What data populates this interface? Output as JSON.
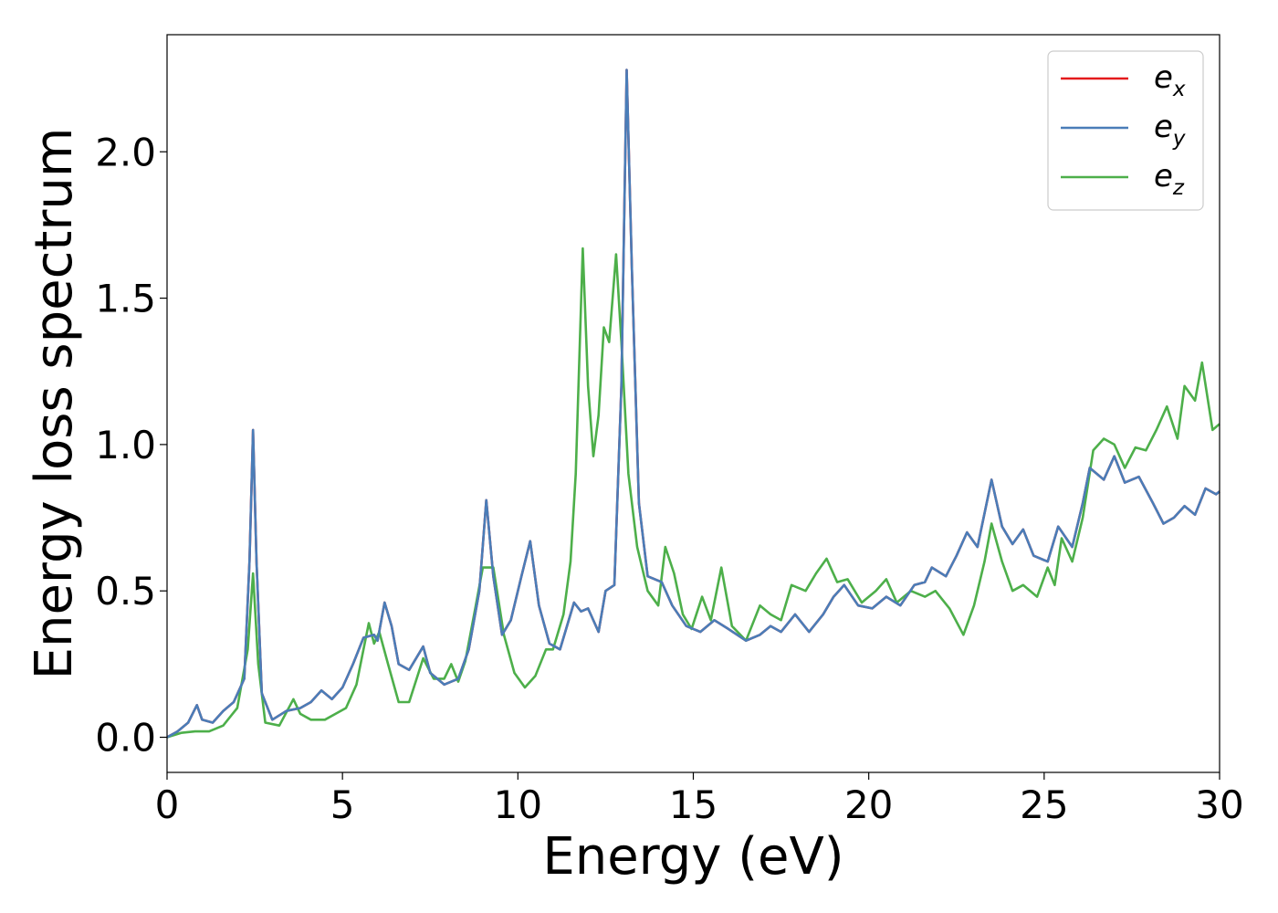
{
  "chart_data": {
    "type": "line",
    "xlabel": "Energy (eV)",
    "ylabel": "Energy loss spectrum",
    "xlim": [
      0,
      30
    ],
    "ylim": [
      -0.12,
      2.4
    ],
    "xticks": [
      0,
      5,
      10,
      15,
      20,
      25,
      30
    ],
    "xtick_labels": [
      "0",
      "5",
      "10",
      "15",
      "20",
      "25",
      "30"
    ],
    "yticks": [
      0.0,
      0.5,
      1.0,
      1.5,
      2.0
    ],
    "ytick_labels": [
      "0.0",
      "0.5",
      "1.0",
      "1.5",
      "2.0"
    ],
    "grid": false,
    "legend_position": "top-right",
    "series": [
      {
        "name": "e",
        "sub": "x",
        "color": "#e41a1c",
        "points": [
          [
            0,
            0
          ],
          [
            0.3,
            0.02
          ],
          [
            0.6,
            0.05
          ],
          [
            0.85,
            0.11
          ],
          [
            1.0,
            0.06
          ],
          [
            1.3,
            0.05
          ],
          [
            1.6,
            0.09
          ],
          [
            1.9,
            0.12
          ],
          [
            2.2,
            0.2
          ],
          [
            2.35,
            0.6
          ],
          [
            2.45,
            1.05
          ],
          [
            2.55,
            0.6
          ],
          [
            2.7,
            0.15
          ],
          [
            3.0,
            0.06
          ],
          [
            3.4,
            0.09
          ],
          [
            3.8,
            0.1
          ],
          [
            4.1,
            0.12
          ],
          [
            4.4,
            0.16
          ],
          [
            4.7,
            0.13
          ],
          [
            5.0,
            0.17
          ],
          [
            5.3,
            0.25
          ],
          [
            5.6,
            0.34
          ],
          [
            5.9,
            0.35
          ],
          [
            6.0,
            0.33
          ],
          [
            6.2,
            0.46
          ],
          [
            6.4,
            0.38
          ],
          [
            6.6,
            0.25
          ],
          [
            6.9,
            0.23
          ],
          [
            7.3,
            0.31
          ],
          [
            7.5,
            0.22
          ],
          [
            7.9,
            0.18
          ],
          [
            8.3,
            0.2
          ],
          [
            8.6,
            0.3
          ],
          [
            8.9,
            0.5
          ],
          [
            9.1,
            0.81
          ],
          [
            9.3,
            0.55
          ],
          [
            9.55,
            0.35
          ],
          [
            9.8,
            0.4
          ],
          [
            10.1,
            0.55
          ],
          [
            10.35,
            0.67
          ],
          [
            10.6,
            0.45
          ],
          [
            10.9,
            0.32
          ],
          [
            11.2,
            0.3
          ],
          [
            11.4,
            0.38
          ],
          [
            11.6,
            0.46
          ],
          [
            11.8,
            0.43
          ],
          [
            12.0,
            0.44
          ],
          [
            12.3,
            0.36
          ],
          [
            12.5,
            0.5
          ],
          [
            12.75,
            0.52
          ],
          [
            12.95,
            1.2
          ],
          [
            13.1,
            2.28
          ],
          [
            13.25,
            1.6
          ],
          [
            13.45,
            0.8
          ],
          [
            13.7,
            0.55
          ],
          [
            14.1,
            0.53
          ],
          [
            14.4,
            0.45
          ],
          [
            14.8,
            0.38
          ],
          [
            15.2,
            0.36
          ],
          [
            15.6,
            0.4
          ],
          [
            16.0,
            0.37
          ],
          [
            16.5,
            0.33
          ],
          [
            16.9,
            0.35
          ],
          [
            17.2,
            0.38
          ],
          [
            17.5,
            0.36
          ],
          [
            17.9,
            0.42
          ],
          [
            18.3,
            0.36
          ],
          [
            18.7,
            0.42
          ],
          [
            19.0,
            0.48
          ],
          [
            19.3,
            0.52
          ],
          [
            19.7,
            0.45
          ],
          [
            20.1,
            0.44
          ],
          [
            20.5,
            0.48
          ],
          [
            20.9,
            0.45
          ],
          [
            21.3,
            0.52
          ],
          [
            21.6,
            0.53
          ],
          [
            21.8,
            0.58
          ],
          [
            22.2,
            0.55
          ],
          [
            22.5,
            0.62
          ],
          [
            22.8,
            0.7
          ],
          [
            23.1,
            0.65
          ],
          [
            23.5,
            0.88
          ],
          [
            23.8,
            0.72
          ],
          [
            24.1,
            0.66
          ],
          [
            24.4,
            0.71
          ],
          [
            24.7,
            0.62
          ],
          [
            25.1,
            0.6
          ],
          [
            25.4,
            0.72
          ],
          [
            25.8,
            0.65
          ],
          [
            26.1,
            0.8
          ],
          [
            26.3,
            0.92
          ],
          [
            26.7,
            0.88
          ],
          [
            27.0,
            0.96
          ],
          [
            27.3,
            0.87
          ],
          [
            27.7,
            0.89
          ],
          [
            28.1,
            0.8
          ],
          [
            28.4,
            0.73
          ],
          [
            28.7,
            0.75
          ],
          [
            29.0,
            0.79
          ],
          [
            29.3,
            0.76
          ],
          [
            29.6,
            0.85
          ],
          [
            29.9,
            0.83
          ],
          [
            30,
            0.84
          ]
        ]
      },
      {
        "name": "e",
        "sub": "y",
        "color": "#4a7db8",
        "points": [
          [
            0,
            0
          ],
          [
            0.3,
            0.02
          ],
          [
            0.6,
            0.05
          ],
          [
            0.85,
            0.11
          ],
          [
            1.0,
            0.06
          ],
          [
            1.3,
            0.05
          ],
          [
            1.6,
            0.09
          ],
          [
            1.9,
            0.12
          ],
          [
            2.2,
            0.2
          ],
          [
            2.35,
            0.6
          ],
          [
            2.45,
            1.05
          ],
          [
            2.55,
            0.6
          ],
          [
            2.7,
            0.15
          ],
          [
            3.0,
            0.06
          ],
          [
            3.4,
            0.09
          ],
          [
            3.8,
            0.1
          ],
          [
            4.1,
            0.12
          ],
          [
            4.4,
            0.16
          ],
          [
            4.7,
            0.13
          ],
          [
            5.0,
            0.17
          ],
          [
            5.3,
            0.25
          ],
          [
            5.6,
            0.34
          ],
          [
            5.9,
            0.35
          ],
          [
            6.0,
            0.33
          ],
          [
            6.2,
            0.46
          ],
          [
            6.4,
            0.38
          ],
          [
            6.6,
            0.25
          ],
          [
            6.9,
            0.23
          ],
          [
            7.3,
            0.31
          ],
          [
            7.5,
            0.22
          ],
          [
            7.9,
            0.18
          ],
          [
            8.3,
            0.2
          ],
          [
            8.6,
            0.3
          ],
          [
            8.9,
            0.5
          ],
          [
            9.1,
            0.81
          ],
          [
            9.3,
            0.55
          ],
          [
            9.55,
            0.35
          ],
          [
            9.8,
            0.4
          ],
          [
            10.1,
            0.55
          ],
          [
            10.35,
            0.67
          ],
          [
            10.6,
            0.45
          ],
          [
            10.9,
            0.32
          ],
          [
            11.2,
            0.3
          ],
          [
            11.4,
            0.38
          ],
          [
            11.6,
            0.46
          ],
          [
            11.8,
            0.43
          ],
          [
            12.0,
            0.44
          ],
          [
            12.3,
            0.36
          ],
          [
            12.5,
            0.5
          ],
          [
            12.75,
            0.52
          ],
          [
            12.95,
            1.2
          ],
          [
            13.1,
            2.28
          ],
          [
            13.25,
            1.6
          ],
          [
            13.45,
            0.8
          ],
          [
            13.7,
            0.55
          ],
          [
            14.1,
            0.53
          ],
          [
            14.4,
            0.45
          ],
          [
            14.8,
            0.38
          ],
          [
            15.2,
            0.36
          ],
          [
            15.6,
            0.4
          ],
          [
            16.0,
            0.37
          ],
          [
            16.5,
            0.33
          ],
          [
            16.9,
            0.35
          ],
          [
            17.2,
            0.38
          ],
          [
            17.5,
            0.36
          ],
          [
            17.9,
            0.42
          ],
          [
            18.3,
            0.36
          ],
          [
            18.7,
            0.42
          ],
          [
            19.0,
            0.48
          ],
          [
            19.3,
            0.52
          ],
          [
            19.7,
            0.45
          ],
          [
            20.1,
            0.44
          ],
          [
            20.5,
            0.48
          ],
          [
            20.9,
            0.45
          ],
          [
            21.3,
            0.52
          ],
          [
            21.6,
            0.53
          ],
          [
            21.8,
            0.58
          ],
          [
            22.2,
            0.55
          ],
          [
            22.5,
            0.62
          ],
          [
            22.8,
            0.7
          ],
          [
            23.1,
            0.65
          ],
          [
            23.5,
            0.88
          ],
          [
            23.8,
            0.72
          ],
          [
            24.1,
            0.66
          ],
          [
            24.4,
            0.71
          ],
          [
            24.7,
            0.62
          ],
          [
            25.1,
            0.6
          ],
          [
            25.4,
            0.72
          ],
          [
            25.8,
            0.65
          ],
          [
            26.1,
            0.8
          ],
          [
            26.3,
            0.92
          ],
          [
            26.7,
            0.88
          ],
          [
            27.0,
            0.96
          ],
          [
            27.3,
            0.87
          ],
          [
            27.7,
            0.89
          ],
          [
            28.1,
            0.8
          ],
          [
            28.4,
            0.73
          ],
          [
            28.7,
            0.75
          ],
          [
            29.0,
            0.79
          ],
          [
            29.3,
            0.76
          ],
          [
            29.6,
            0.85
          ],
          [
            29.9,
            0.83
          ],
          [
            30,
            0.84
          ]
        ]
      },
      {
        "name": "e",
        "sub": "z",
        "color": "#4daf4a",
        "points": [
          [
            0,
            0
          ],
          [
            0.4,
            0.015
          ],
          [
            0.8,
            0.02
          ],
          [
            1.2,
            0.02
          ],
          [
            1.6,
            0.04
          ],
          [
            2.0,
            0.1
          ],
          [
            2.3,
            0.3
          ],
          [
            2.45,
            0.56
          ],
          [
            2.6,
            0.25
          ],
          [
            2.8,
            0.05
          ],
          [
            3.2,
            0.04
          ],
          [
            3.6,
            0.13
          ],
          [
            3.8,
            0.08
          ],
          [
            4.1,
            0.06
          ],
          [
            4.5,
            0.06
          ],
          [
            4.8,
            0.08
          ],
          [
            5.1,
            0.1
          ],
          [
            5.4,
            0.18
          ],
          [
            5.6,
            0.3
          ],
          [
            5.75,
            0.39
          ],
          [
            5.9,
            0.32
          ],
          [
            6.05,
            0.36
          ],
          [
            6.3,
            0.25
          ],
          [
            6.6,
            0.12
          ],
          [
            6.9,
            0.12
          ],
          [
            7.3,
            0.27
          ],
          [
            7.6,
            0.2
          ],
          [
            7.9,
            0.2
          ],
          [
            8.1,
            0.25
          ],
          [
            8.3,
            0.19
          ],
          [
            8.5,
            0.26
          ],
          [
            8.8,
            0.45
          ],
          [
            9.0,
            0.58
          ],
          [
            9.3,
            0.58
          ],
          [
            9.6,
            0.35
          ],
          [
            9.9,
            0.22
          ],
          [
            10.2,
            0.17
          ],
          [
            10.5,
            0.21
          ],
          [
            10.8,
            0.3
          ],
          [
            11.0,
            0.3
          ],
          [
            11.3,
            0.42
          ],
          [
            11.5,
            0.6
          ],
          [
            11.65,
            0.9
          ],
          [
            11.85,
            1.67
          ],
          [
            12.0,
            1.2
          ],
          [
            12.15,
            0.96
          ],
          [
            12.3,
            1.1
          ],
          [
            12.45,
            1.4
          ],
          [
            12.6,
            1.35
          ],
          [
            12.8,
            1.65
          ],
          [
            12.95,
            1.35
          ],
          [
            13.15,
            0.9
          ],
          [
            13.4,
            0.65
          ],
          [
            13.7,
            0.5
          ],
          [
            14.0,
            0.45
          ],
          [
            14.2,
            0.65
          ],
          [
            14.45,
            0.56
          ],
          [
            14.7,
            0.42
          ],
          [
            14.95,
            0.37
          ],
          [
            15.25,
            0.48
          ],
          [
            15.5,
            0.4
          ],
          [
            15.8,
            0.58
          ],
          [
            16.1,
            0.38
          ],
          [
            16.5,
            0.33
          ],
          [
            16.9,
            0.45
          ],
          [
            17.2,
            0.42
          ],
          [
            17.5,
            0.4
          ],
          [
            17.8,
            0.52
          ],
          [
            18.2,
            0.5
          ],
          [
            18.5,
            0.56
          ],
          [
            18.8,
            0.61
          ],
          [
            19.1,
            0.53
          ],
          [
            19.4,
            0.54
          ],
          [
            19.8,
            0.46
          ],
          [
            20.2,
            0.5
          ],
          [
            20.5,
            0.54
          ],
          [
            20.8,
            0.46
          ],
          [
            21.2,
            0.5
          ],
          [
            21.6,
            0.48
          ],
          [
            21.9,
            0.5
          ],
          [
            22.3,
            0.44
          ],
          [
            22.7,
            0.35
          ],
          [
            23.0,
            0.45
          ],
          [
            23.3,
            0.6
          ],
          [
            23.5,
            0.73
          ],
          [
            23.8,
            0.6
          ],
          [
            24.1,
            0.5
          ],
          [
            24.4,
            0.52
          ],
          [
            24.8,
            0.48
          ],
          [
            25.1,
            0.58
          ],
          [
            25.3,
            0.52
          ],
          [
            25.5,
            0.68
          ],
          [
            25.8,
            0.6
          ],
          [
            26.1,
            0.75
          ],
          [
            26.4,
            0.98
          ],
          [
            26.7,
            1.02
          ],
          [
            27.0,
            1.0
          ],
          [
            27.3,
            0.92
          ],
          [
            27.6,
            0.99
          ],
          [
            27.9,
            0.98
          ],
          [
            28.2,
            1.05
          ],
          [
            28.5,
            1.13
          ],
          [
            28.8,
            1.02
          ],
          [
            29.0,
            1.2
          ],
          [
            29.3,
            1.15
          ],
          [
            29.5,
            1.28
          ],
          [
            29.8,
            1.05
          ],
          [
            30,
            1.07
          ]
        ]
      }
    ]
  }
}
